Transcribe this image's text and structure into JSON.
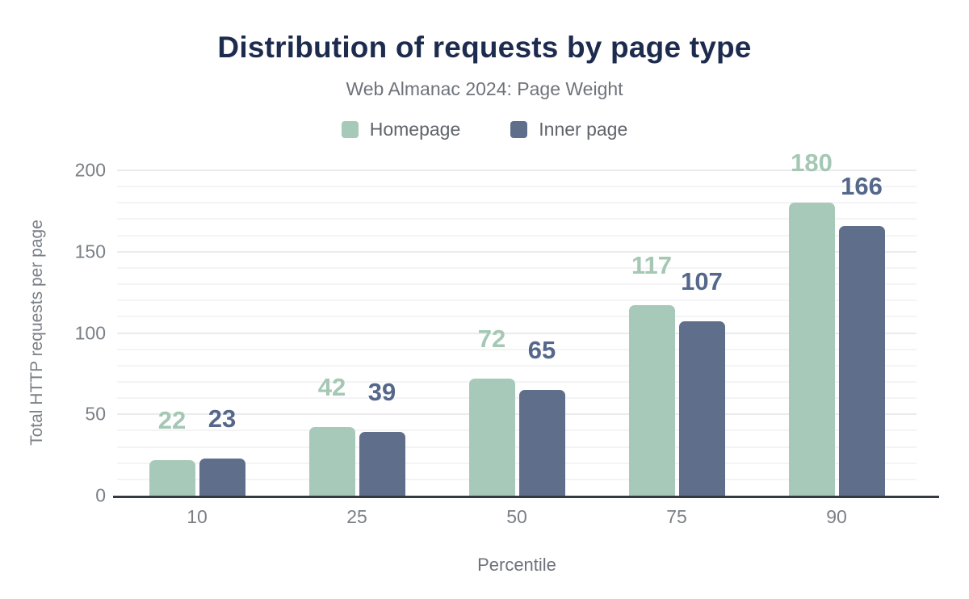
{
  "chart_data": {
    "type": "bar",
    "title": "Distribution of requests by page type",
    "subtitle": "Web Almanac 2024: Page Weight",
    "categories": [
      "10",
      "25",
      "50",
      "75",
      "90"
    ],
    "series": [
      {
        "name": "Homepage",
        "color": "#a7c9b9",
        "label_color": "#a4c8b4",
        "values": [
          22,
          42,
          72,
          117,
          180
        ]
      },
      {
        "name": "Inner page",
        "color": "#5e6e8b",
        "label_color": "#55688b",
        "values": [
          23,
          39,
          65,
          107,
          166
        ]
      }
    ],
    "xlabel": "Percentile",
    "ylabel": "Total HTTP requests per page",
    "ylim": [
      0,
      200
    ],
    "yticks": [
      0,
      50,
      100,
      150,
      200
    ],
    "minor_gridline_step": 10,
    "major_gridline_step": 50,
    "grid": "horizontal",
    "legend_position": "top"
  },
  "colors": {
    "bg": "#ffffff",
    "title": "#1d2c4e",
    "subtitle": "#6e737b",
    "axis-text": "#7b8087",
    "legend-text": "#5f646b",
    "baseline": "#343a40",
    "grid-minor": "#f4f4f6",
    "grid-major": "#ebebed"
  }
}
